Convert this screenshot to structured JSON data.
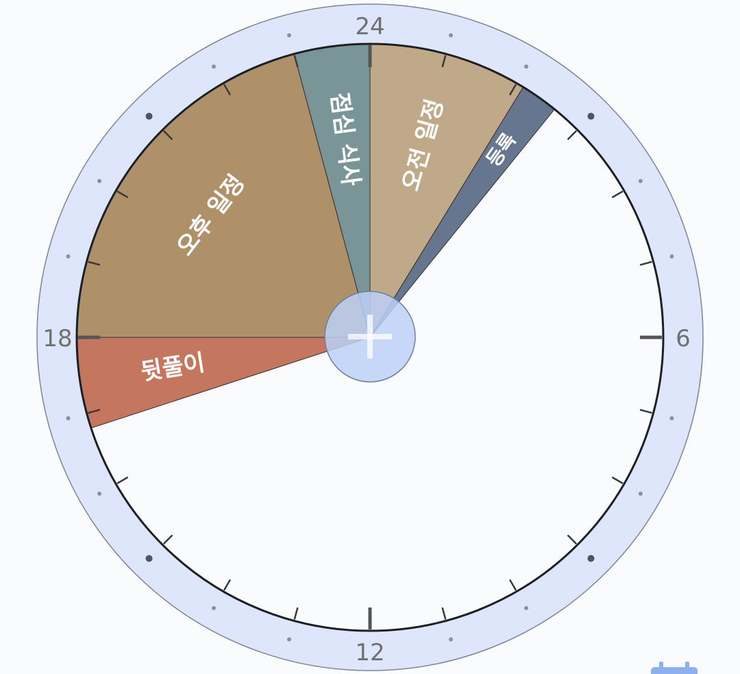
{
  "clock": {
    "hour_labels": {
      "top": "24",
      "right": "6",
      "bottom": "12",
      "left": "18"
    }
  },
  "schedule": {
    "segments": [
      {
        "label": "뒷풀이",
        "start_hour": 16.8,
        "end_hour": 18,
        "color": "#c4765f"
      },
      {
        "label": "오후 일정",
        "start_hour": 18,
        "end_hour": 23.0,
        "color": "#ae9169"
      },
      {
        "label": "점심 식사",
        "start_hour": 23.0,
        "end_hour": 24,
        "color": "#7a9597"
      },
      {
        "label": "오전 일정",
        "start_hour": 0,
        "end_hour": 2.1,
        "color": "#c0a989"
      },
      {
        "label": "등록",
        "start_hour": 2.1,
        "end_hour": 2.6,
        "color": "#66768e"
      }
    ]
  },
  "colors": {
    "bezel": "#dde6fa",
    "face": "#fafbfd",
    "add_button": "#bcd0f7"
  },
  "icons": {
    "center_button": "plus-icon",
    "corner": "calendar-icon"
  }
}
